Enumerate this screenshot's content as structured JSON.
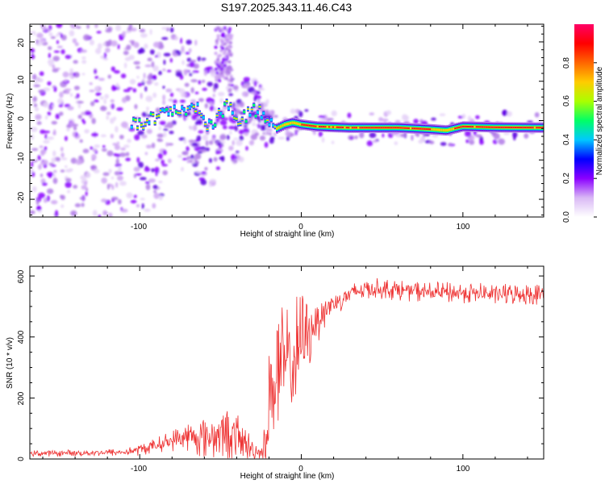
{
  "title": "S197.2025.343.11.46.C43",
  "chart_data": [
    {
      "type": "heatmap",
      "title": "S197.2025.343.11.46.C43",
      "xlabel": "Height of straight line (km)",
      "ylabel": "Frequency (Hz)",
      "xlim": [
        -168,
        150
      ],
      "ylim": [
        -24.5,
        24.5
      ],
      "xticks": [
        "-100",
        "0",
        "100"
      ],
      "yticks": [
        "-20",
        "-10",
        "0",
        "10",
        "20"
      ],
      "colorbar": {
        "label": "Normalized spectral amplitude",
        "range": [
          0,
          1
        ],
        "ticks": [
          "0.0",
          "0.2",
          "0.4",
          "0.6",
          "0.8"
        ],
        "colors": [
          "#ffffff",
          "#d9b8f5",
          "#8b00ff",
          "#0000ff",
          "#00c8ff",
          "#00ff66",
          "#aaff00",
          "#ffcc00",
          "#ff6600",
          "#ff0000",
          "#ff0066"
        ]
      },
      "ridge": [
        {
          "x": -100,
          "y": -1
        },
        {
          "x": -90,
          "y": 1
        },
        {
          "x": -80,
          "y": 3
        },
        {
          "x": -70,
          "y": 2
        },
        {
          "x": -65,
          "y": 4
        },
        {
          "x": -60,
          "y": 0
        },
        {
          "x": -55,
          "y": -2
        },
        {
          "x": -50,
          "y": 2
        },
        {
          "x": -45,
          "y": 4
        },
        {
          "x": -40,
          "y": -1
        },
        {
          "x": -35,
          "y": 1
        },
        {
          "x": -30,
          "y": 2.5
        },
        {
          "x": -25,
          "y": 2
        },
        {
          "x": -20,
          "y": -1
        },
        {
          "x": -15,
          "y": -2
        },
        {
          "x": -10,
          "y": -1
        },
        {
          "x": -5,
          "y": -0.5
        },
        {
          "x": 0,
          "y": -1
        },
        {
          "x": 10,
          "y": -1.5
        },
        {
          "x": 30,
          "y": -1.8
        },
        {
          "x": 60,
          "y": -1.8
        },
        {
          "x": 80,
          "y": -2.2
        },
        {
          "x": 90,
          "y": -2.5
        },
        {
          "x": 100,
          "y": -1.5
        },
        {
          "x": 120,
          "y": -1.7
        },
        {
          "x": 150,
          "y": -1.8
        }
      ]
    },
    {
      "type": "line",
      "xlabel": "Height of straight line (km)",
      "ylabel": "SNR (10 * v/v)",
      "xlim": [
        -168,
        150
      ],
      "ylim": [
        0,
        632
      ],
      "xticks": [
        "-100",
        "0",
        "100"
      ],
      "yticks": [
        "0",
        "200",
        "400",
        "600"
      ],
      "color": "#ee3333",
      "envelope": {
        "x": [
          -168,
          -110,
          -100,
          -90,
          -80,
          -70,
          -60,
          -50,
          -40,
          -30,
          -25,
          -22,
          -20,
          -15,
          -10,
          -5,
          0,
          5,
          10,
          15,
          20,
          25,
          30,
          40,
          60,
          80,
          100,
          120,
          150
        ],
        "mean": [
          18,
          22,
          30,
          45,
          60,
          75,
          70,
          85,
          70,
          30,
          20,
          60,
          200,
          280,
          300,
          330,
          380,
          420,
          460,
          490,
          510,
          525,
          540,
          560,
          555,
          545,
          545,
          540,
          540
        ],
        "noise": [
          10,
          12,
          20,
          25,
          35,
          50,
          70,
          90,
          80,
          40,
          20,
          80,
          200,
          230,
          220,
          200,
          180,
          120,
          80,
          60,
          45,
          40,
          40,
          35,
          35,
          35,
          35,
          35,
          35
        ]
      }
    }
  ]
}
